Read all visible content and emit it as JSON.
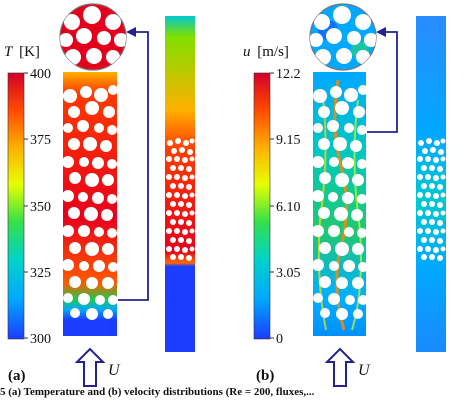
{
  "panel_a": {
    "label": "(a)",
    "variable": "T",
    "unit": "[K]",
    "flow_symbol": "U",
    "ticks": [
      "400",
      "375",
      "350",
      "325",
      "300"
    ],
    "colormap": [
      "#d4002a",
      "#ff4a00",
      "#ffb000",
      "#e6ff00",
      "#34e04a",
      "#00d4c8",
      "#00a8ff",
      "#1c3cff"
    ]
  },
  "panel_b": {
    "label": "(b)",
    "variable": "u",
    "unit": "[m/s]",
    "flow_symbol": "U",
    "ticks": [
      "12.2",
      "9.15",
      "6.10",
      "3.05",
      "0"
    ],
    "colormap": [
      "#d4002a",
      "#ff4a00",
      "#ffb000",
      "#e6ff00",
      "#34e04a",
      "#00d4c8",
      "#00a8ff",
      "#1c3cff"
    ]
  },
  "caption": "5 (a) Temperature and (b) velocity distributions (Re = 200, fluxes,..."
}
